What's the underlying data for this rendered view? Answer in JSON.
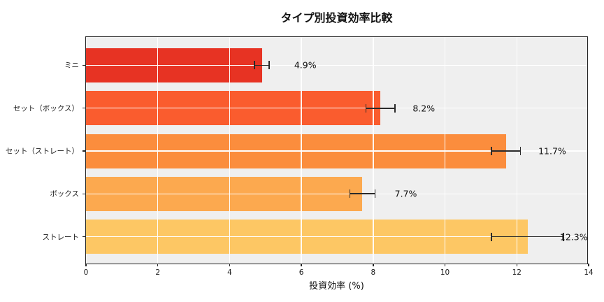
{
  "chart_data": {
    "type": "bar",
    "orientation": "horizontal",
    "title": "タイプ別投資効率比較",
    "xlabel": "投資効率 (%)",
    "categories": [
      "ミニ",
      "セット（ボックス）",
      "セット（ストレート）",
      "ボックス",
      "ストレート"
    ],
    "values": [
      4.9,
      8.2,
      11.7,
      7.7,
      12.3
    ],
    "errors": [
      0.2,
      0.4,
      0.4,
      0.35,
      1.0
    ],
    "value_labels": [
      "4.9%",
      "8.2%",
      "11.7%",
      "7.7%",
      "12.3%"
    ],
    "bar_colors": [
      "#e73323",
      "#fa5c2e",
      "#fb8d3d",
      "#fca94f",
      "#fdc764"
    ],
    "xlim": [
      0,
      14
    ],
    "xticks": [
      "0",
      "2",
      "4",
      "6",
      "8",
      "10",
      "12",
      "14"
    ],
    "grid": true,
    "legend": "none",
    "colors": {
      "plot_background": "#efefef",
      "figure_background": "#ffffff",
      "gridline": "#ffffff",
      "errorbar": "#2b2b2b",
      "spine": "#262626",
      "text": "#111111"
    }
  }
}
